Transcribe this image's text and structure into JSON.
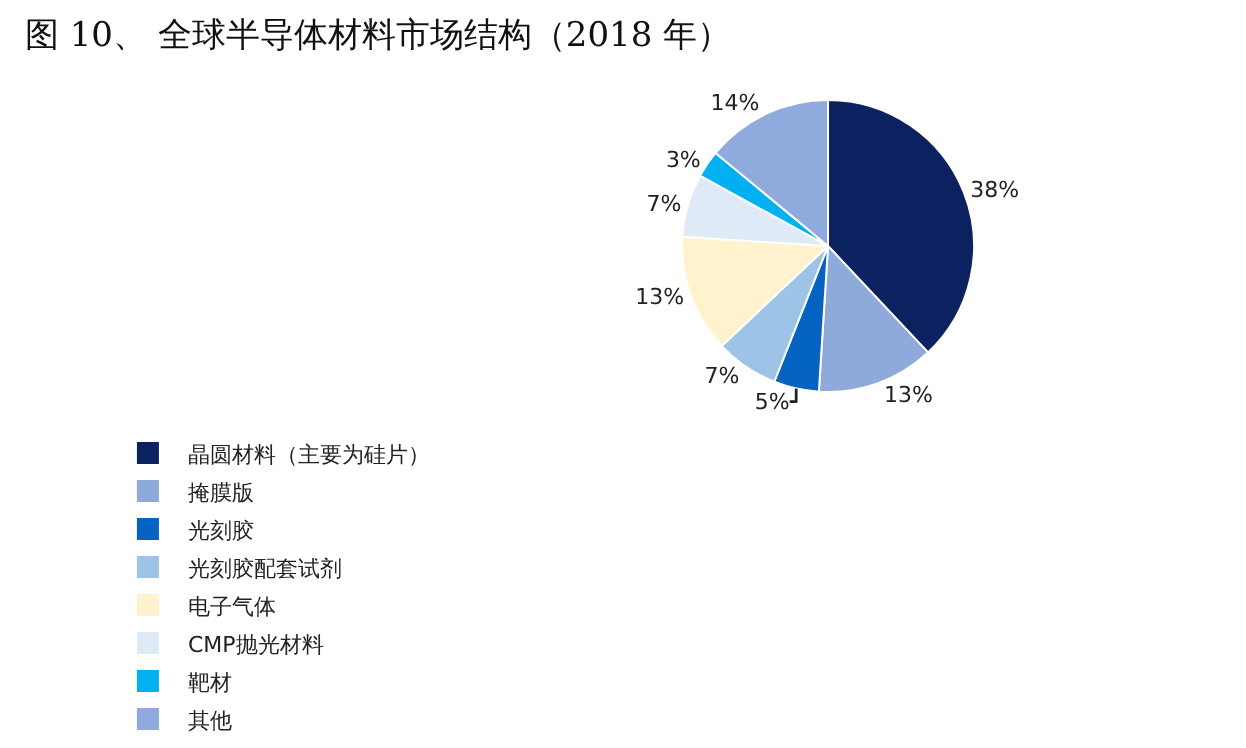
{
  "chart_data": {
    "type": "pie",
    "title": "图 10、 全球半导体材料市场结构（2018 年）",
    "categories": [
      "晶圆材料（主要为硅片）",
      "掩膜版",
      "光刻胶",
      "光刻胶配套试剂",
      "电子气体",
      "CMP抛光材料",
      "靶材",
      "其他"
    ],
    "values": [
      38,
      13,
      5,
      7,
      13,
      7,
      3,
      14
    ],
    "value_labels": [
      "38%",
      "13%",
      "5%",
      "7%",
      "13%",
      "7%",
      "3%",
      "14%"
    ],
    "colors": [
      "#0b2160",
      "#8eaadb",
      "#0563c1",
      "#9dc3e6",
      "#fff2cc",
      "#deebf7",
      "#00b0f0",
      "#8faadc"
    ],
    "legend": "bottom"
  }
}
